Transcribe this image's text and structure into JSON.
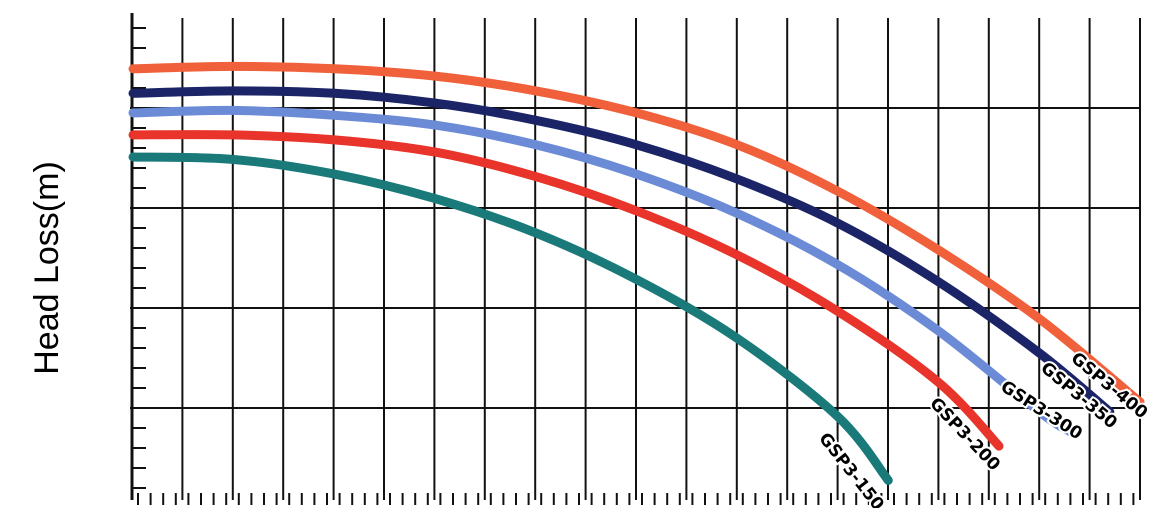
{
  "chart_data": {
    "type": "line",
    "title": "",
    "xlabel": "",
    "ylabel": "Head Loss(m)",
    "x_ticks_labeled": false,
    "y_ticks_labeled": false,
    "grid": true,
    "legend": "inline curve labels at right end of each curve",
    "xlim": [
      0,
      1
    ],
    "ylim": [
      0,
      1
    ],
    "series": [
      {
        "name": "GSP3-400",
        "color": "#f0603a",
        "x": [
          0,
          0.1,
          0.2,
          0.3,
          0.4,
          0.5,
          0.6,
          0.7,
          0.8,
          0.9,
          1.0
        ],
        "y": [
          0.88,
          0.885,
          0.88,
          0.865,
          0.835,
          0.79,
          0.725,
          0.63,
          0.51,
          0.37,
          0.2
        ]
      },
      {
        "name": "GSP3-350",
        "color": "#1a2466",
        "x": [
          0,
          0.1,
          0.2,
          0.3,
          0.4,
          0.5,
          0.6,
          0.7,
          0.8,
          0.9,
          0.97
        ],
        "y": [
          0.83,
          0.835,
          0.83,
          0.81,
          0.775,
          0.725,
          0.655,
          0.565,
          0.445,
          0.3,
          0.18
        ]
      },
      {
        "name": "GSP3-300",
        "color": "#6b8bd6",
        "x": [
          0,
          0.1,
          0.2,
          0.3,
          0.4,
          0.5,
          0.6,
          0.7,
          0.8,
          0.9,
          0.93
        ],
        "y": [
          0.79,
          0.795,
          0.785,
          0.765,
          0.725,
          0.665,
          0.585,
          0.48,
          0.345,
          0.18,
          0.14
        ]
      },
      {
        "name": "GSP3-200",
        "color": "#e8342a",
        "x": [
          0,
          0.1,
          0.2,
          0.3,
          0.4,
          0.5,
          0.6,
          0.7,
          0.8,
          0.86
        ],
        "y": [
          0.745,
          0.745,
          0.735,
          0.71,
          0.66,
          0.59,
          0.5,
          0.385,
          0.24,
          0.11
        ]
      },
      {
        "name": "GSP3-150",
        "color": "#1a7a7a",
        "x": [
          0,
          0.1,
          0.2,
          0.3,
          0.4,
          0.5,
          0.6,
          0.7,
          0.75
        ],
        "y": [
          0.7,
          0.695,
          0.665,
          0.615,
          0.545,
          0.45,
          0.33,
          0.17,
          0.04
        ]
      }
    ]
  }
}
